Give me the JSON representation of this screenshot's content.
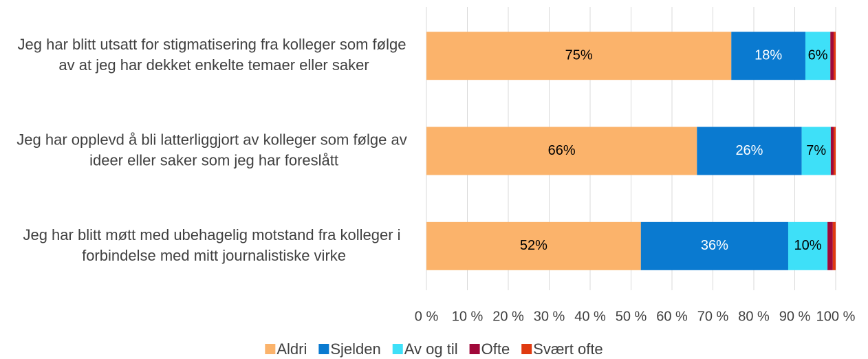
{
  "chart_data": {
    "type": "stacked-barh",
    "categories": [
      "Jeg har blitt utsatt for stigmatisering fra kolleger som følge av at jeg har dekket enkelte temaer eller saker",
      "Jeg har opplevd å bli latterliggjort av kolleger som følge av ideer eller saker som jeg har foreslått",
      "Jeg har blitt møtt med ubehagelig motstand fra kolleger i forbindelse med mitt journalistiske virke"
    ],
    "series": [
      {
        "name": "Aldri",
        "color": "#fbb36b",
        "values": [
          74.5,
          66.1,
          52.4
        ],
        "value_labels": [
          "75%",
          "66%",
          "52%"
        ]
      },
      {
        "name": "Sjelden",
        "color": "#0a7ad0",
        "values": [
          18.1,
          25.6,
          36.0
        ],
        "value_labels": [
          "18%",
          "26%",
          "36%"
        ]
      },
      {
        "name": "Av og til",
        "color": "#3ee0f8",
        "values": [
          6.1,
          7.1,
          9.6
        ],
        "value_labels": [
          "6%",
          "7%",
          "10%"
        ]
      },
      {
        "name": "Ofte",
        "color": "#a0093a",
        "values": [
          0.8,
          0.7,
          1.3
        ]
      },
      {
        "name": "Svært ofte",
        "color": "#e03a10",
        "values": [
          0.5,
          0.5,
          0.7
        ]
      }
    ],
    "xlim": [
      0,
      100
    ],
    "xticks": [
      {
        "value": 0,
        "label": "0 %"
      },
      {
        "value": 10,
        "label": "10 %"
      },
      {
        "value": 20,
        "label": "20 %"
      },
      {
        "value": 30,
        "label": "30 %"
      },
      {
        "value": 40,
        "label": "40 %"
      },
      {
        "value": 50,
        "label": "50 %"
      },
      {
        "value": 60,
        "label": "60 %"
      },
      {
        "value": 70,
        "label": "70 %"
      },
      {
        "value": 80,
        "label": "80 %"
      },
      {
        "value": 90,
        "label": "90 %"
      },
      {
        "value": 100,
        "label": "100 %"
      }
    ],
    "grid": true,
    "legend": "bottom"
  }
}
